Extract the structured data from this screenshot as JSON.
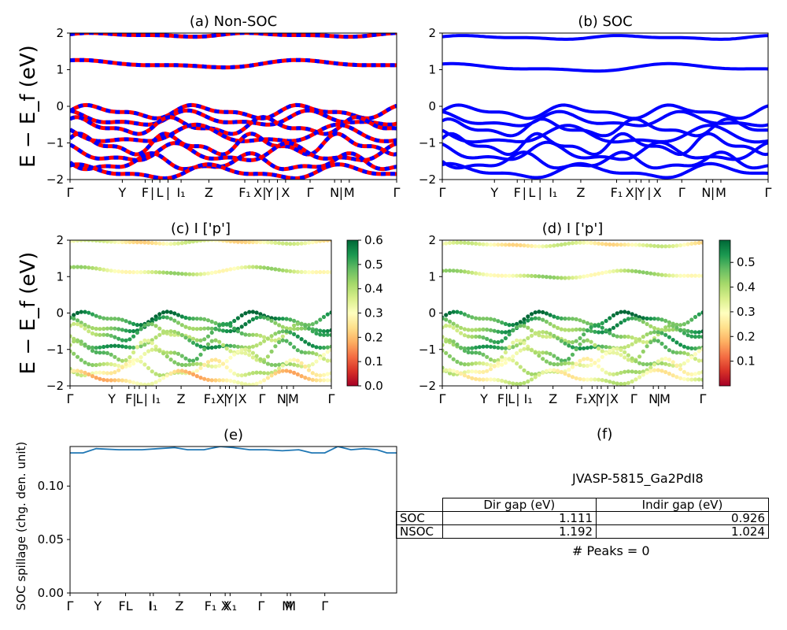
{
  "chart_data": [
    {
      "id": "a",
      "type": "line",
      "title": "(a) Non-SOC",
      "ylabel": "E − E_f (eV)",
      "ylim": [
        -2,
        2
      ],
      "yticks": [
        "2",
        "1",
        "0",
        "−1",
        "−2"
      ],
      "colors": [
        "#ff0000",
        "#0000ff"
      ],
      "xticks": [
        {
          "label": "Γ",
          "x": 0.0
        },
        {
          "label": "Y",
          "x": 0.16
        },
        {
          "label": "F",
          "x": 0.23
        },
        {
          "label": "|",
          "x": 0.252
        },
        {
          "label": "L",
          "x": 0.275
        },
        {
          "label": "|",
          "x": 0.3
        },
        {
          "label": "I₁",
          "x": 0.34
        },
        {
          "label": "Z",
          "x": 0.425
        },
        {
          "label": "F₁",
          "x": 0.535
        },
        {
          "label": "X",
          "x": 0.575
        },
        {
          "label": "|",
          "x": 0.595
        },
        {
          "label": "Y",
          "x": 0.61
        },
        {
          "label": "|",
          "x": 0.635
        },
        {
          "label": "X",
          "x": 0.66
        },
        {
          "label": "Γ",
          "x": 0.735
        },
        {
          "label": "N",
          "x": 0.81
        },
        {
          "label": "|",
          "x": 0.83
        },
        {
          "label": "M",
          "x": 0.855
        },
        {
          "label": "Γ",
          "x": 1.0
        }
      ],
      "bands": [
        {
          "base": 1.95,
          "amp": 0.04,
          "freq": 2.1,
          "phase": 0.3
        },
        {
          "base": 1.15,
          "amp": 0.08,
          "freq": 1.5,
          "phase": 1.0
        },
        {
          "base": -0.15,
          "amp": 0.14,
          "freq": 3.1,
          "phase": 0.1
        },
        {
          "base": -0.35,
          "amp": 0.16,
          "freq": 2.7,
          "phase": 1.6
        },
        {
          "base": -0.55,
          "amp": 0.18,
          "freq": 3.5,
          "phase": 0.8
        },
        {
          "base": -0.8,
          "amp": 0.2,
          "freq": 2.3,
          "phase": 2.3
        },
        {
          "base": -1.05,
          "amp": 0.22,
          "freq": 3.8,
          "phase": 0.5
        },
        {
          "base": -1.3,
          "amp": 0.2,
          "freq": 2.9,
          "phase": 1.9
        },
        {
          "base": -1.55,
          "amp": 0.18,
          "freq": 3.3,
          "phase": 2.8
        },
        {
          "base": -1.8,
          "amp": 0.15,
          "freq": 2.5,
          "phase": 0.9
        }
      ]
    },
    {
      "id": "b",
      "type": "line",
      "title": "(b) SOC",
      "ylim": [
        -2,
        2
      ],
      "yticks": [
        "2",
        "1",
        "0",
        "−1",
        "−2"
      ],
      "colors": [
        "#0000ff"
      ],
      "xticks": [
        {
          "label": "Γ",
          "x": 0.0
        },
        {
          "label": "Y",
          "x": 0.16
        },
        {
          "label": "F",
          "x": 0.23
        },
        {
          "label": "|",
          "x": 0.252
        },
        {
          "label": "L",
          "x": 0.275
        },
        {
          "label": "|",
          "x": 0.3
        },
        {
          "label": "I₁",
          "x": 0.34
        },
        {
          "label": "Z",
          "x": 0.425
        },
        {
          "label": "F₁",
          "x": 0.535
        },
        {
          "label": "X",
          "x": 0.575
        },
        {
          "label": "|",
          "x": 0.595
        },
        {
          "label": "Y",
          "x": 0.61
        },
        {
          "label": "|",
          "x": 0.635
        },
        {
          "label": "X",
          "x": 0.66
        },
        {
          "label": "Γ",
          "x": 0.735
        },
        {
          "label": "N",
          "x": 0.81
        },
        {
          "label": "|",
          "x": 0.83
        },
        {
          "label": "M",
          "x": 0.855
        },
        {
          "label": "Γ",
          "x": 1.0
        }
      ],
      "bands": [
        {
          "base": 1.88,
          "amp": 0.04,
          "freq": 2.1,
          "phase": 0.3
        },
        {
          "base": 1.05,
          "amp": 0.08,
          "freq": 1.5,
          "phase": 1.0
        },
        {
          "base": -0.15,
          "amp": 0.14,
          "freq": 3.1,
          "phase": 0.1
        },
        {
          "base": -0.38,
          "amp": 0.16,
          "freq": 2.7,
          "phase": 1.6
        },
        {
          "base": -0.6,
          "amp": 0.18,
          "freq": 3.5,
          "phase": 0.8
        },
        {
          "base": -0.82,
          "amp": 0.2,
          "freq": 2.3,
          "phase": 2.3
        },
        {
          "base": -1.05,
          "amp": 0.22,
          "freq": 3.8,
          "phase": 0.5
        },
        {
          "base": -1.28,
          "amp": 0.2,
          "freq": 2.9,
          "phase": 1.9
        },
        {
          "base": -1.52,
          "amp": 0.18,
          "freq": 3.3,
          "phase": 2.8
        },
        {
          "base": -1.78,
          "amp": 0.15,
          "freq": 2.5,
          "phase": 0.9
        }
      ]
    },
    {
      "id": "c",
      "type": "scatter",
      "title": "(c)  I ['p']",
      "ylabel": "E − E_f (eV)",
      "ylim": [
        -2,
        2
      ],
      "yticks": [
        "2",
        "1",
        "0",
        "−1",
        "−2"
      ],
      "colorbar": {
        "min": 0.0,
        "max": 0.6,
        "ticks": [
          "0.6",
          "0.5",
          "0.4",
          "0.3",
          "0.2",
          "0.1",
          "0.0"
        ]
      },
      "xticks": [
        {
          "label": "Γ",
          "x": 0.0
        },
        {
          "label": "Y",
          "x": 0.16
        },
        {
          "label": "F",
          "x": 0.225
        },
        {
          "label": "|",
          "x": 0.247
        },
        {
          "label": "L",
          "x": 0.265
        },
        {
          "label": "|",
          "x": 0.29
        },
        {
          "label": "I₁",
          "x": 0.33
        },
        {
          "label": "Z",
          "x": 0.425
        },
        {
          "label": "F₁",
          "x": 0.535
        },
        {
          "label": "X",
          "x": 0.575
        },
        {
          "label": "|",
          "x": 0.595
        },
        {
          "label": "Y",
          "x": 0.61
        },
        {
          "label": "|",
          "x": 0.635
        },
        {
          "label": "X",
          "x": 0.66
        },
        {
          "label": "Γ",
          "x": 0.735
        },
        {
          "label": "N",
          "x": 0.81
        },
        {
          "label": "|",
          "x": 0.83
        },
        {
          "label": "M",
          "x": 0.855
        },
        {
          "label": "Γ",
          "x": 1.0
        }
      ],
      "bands": [
        {
          "base": 1.95,
          "amp": 0.04,
          "freq": 2.1,
          "phase": 0.3,
          "val": 0.3
        },
        {
          "base": 1.15,
          "amp": 0.08,
          "freq": 1.5,
          "phase": 1.0,
          "val": 0.36
        },
        {
          "base": -0.15,
          "amp": 0.14,
          "freq": 3.1,
          "phase": 0.1,
          "val": 0.55
        },
        {
          "base": -0.35,
          "amp": 0.16,
          "freq": 2.7,
          "phase": 1.6,
          "val": 0.5
        },
        {
          "base": -0.55,
          "amp": 0.18,
          "freq": 3.5,
          "phase": 0.8,
          "val": 0.45
        },
        {
          "base": -0.8,
          "amp": 0.2,
          "freq": 2.3,
          "phase": 2.3,
          "val": 0.48
        },
        {
          "base": -1.05,
          "amp": 0.22,
          "freq": 3.8,
          "phase": 0.5,
          "val": 0.42
        },
        {
          "base": -1.3,
          "amp": 0.2,
          "freq": 2.9,
          "phase": 1.9,
          "val": 0.38
        },
        {
          "base": -1.55,
          "amp": 0.18,
          "freq": 3.3,
          "phase": 2.8,
          "val": 0.33
        },
        {
          "base": -1.8,
          "amp": 0.15,
          "freq": 2.5,
          "phase": 0.9,
          "val": 0.25
        }
      ]
    },
    {
      "id": "d",
      "type": "scatter",
      "title": "(d) I ['p']",
      "ylim": [
        -2,
        2
      ],
      "yticks": [
        "2",
        "1",
        "0",
        "−1",
        "−2"
      ],
      "colorbar": {
        "min": 0.0,
        "max": 0.59,
        "ticks": [
          "0.5",
          "0.4",
          "0.3",
          "0.2",
          "0.1"
        ]
      },
      "xticks": [
        {
          "label": "Γ",
          "x": 0.0
        },
        {
          "label": "Y",
          "x": 0.16
        },
        {
          "label": "F",
          "x": 0.225
        },
        {
          "label": "|",
          "x": 0.247
        },
        {
          "label": "L",
          "x": 0.265
        },
        {
          "label": "|",
          "x": 0.29
        },
        {
          "label": "I₁",
          "x": 0.33
        },
        {
          "label": "Z",
          "x": 0.425
        },
        {
          "label": "F₁",
          "x": 0.535
        },
        {
          "label": "X",
          "x": 0.575
        },
        {
          "label": "|",
          "x": 0.595
        },
        {
          "label": "Y",
          "x": 0.61
        },
        {
          "label": "|",
          "x": 0.635
        },
        {
          "label": "X",
          "x": 0.66
        },
        {
          "label": "Γ",
          "x": 0.735
        },
        {
          "label": "N",
          "x": 0.81
        },
        {
          "label": "|",
          "x": 0.83
        },
        {
          "label": "M",
          "x": 0.855
        },
        {
          "label": "Γ",
          "x": 1.0
        }
      ],
      "bands": [
        {
          "base": 1.88,
          "amp": 0.04,
          "freq": 2.1,
          "phase": 0.3,
          "val": 0.3
        },
        {
          "base": 1.05,
          "amp": 0.08,
          "freq": 1.5,
          "phase": 1.0,
          "val": 0.36
        },
        {
          "base": -0.15,
          "amp": 0.14,
          "freq": 3.1,
          "phase": 0.1,
          "val": 0.53
        },
        {
          "base": -0.38,
          "amp": 0.16,
          "freq": 2.7,
          "phase": 1.6,
          "val": 0.48
        },
        {
          "base": -0.6,
          "amp": 0.18,
          "freq": 3.5,
          "phase": 0.8,
          "val": 0.44
        },
        {
          "base": -0.82,
          "amp": 0.2,
          "freq": 2.3,
          "phase": 2.3,
          "val": 0.46
        },
        {
          "base": -1.05,
          "amp": 0.22,
          "freq": 3.8,
          "phase": 0.5,
          "val": 0.41
        },
        {
          "base": -1.28,
          "amp": 0.2,
          "freq": 2.9,
          "phase": 1.9,
          "val": 0.37
        },
        {
          "base": -1.52,
          "amp": 0.18,
          "freq": 3.3,
          "phase": 2.8,
          "val": 0.34
        },
        {
          "base": -1.78,
          "amp": 0.15,
          "freq": 2.5,
          "phase": 0.9,
          "val": 0.32
        }
      ]
    },
    {
      "id": "e",
      "type": "line",
      "title": "(e)",
      "ylabel": "SOC spillage (chg. den. unit)",
      "ylim": [
        0,
        0.137
      ],
      "yticks": [
        {
          "label": "0.10",
          "v": 0.1
        },
        {
          "label": "0.05",
          "v": 0.05
        },
        {
          "label": "0.00",
          "v": 0.0
        }
      ],
      "color": "#1f77b4",
      "xticks": [
        {
          "label": "Γ",
          "x": 0.0
        },
        {
          "label": "Y",
          "x": 0.085
        },
        {
          "label": "FL",
          "x": 0.17
        },
        {
          "label": "I",
          "x": 0.245
        },
        {
          "label": "I₁",
          "x": 0.255
        },
        {
          "label": "Z",
          "x": 0.335
        },
        {
          "label": "F₁",
          "x": 0.43
        },
        {
          "label": "X",
          "x": 0.475
        },
        {
          "label": "X₁",
          "x": 0.49
        },
        {
          "label": "Γ",
          "x": 0.585
        },
        {
          "label": "M",
          "x": 0.665
        },
        {
          "label": "M",
          "x": 0.675
        },
        {
          "label": "Γ",
          "x": 0.78
        }
      ],
      "x": [
        0.0,
        0.04,
        0.08,
        0.15,
        0.22,
        0.27,
        0.32,
        0.36,
        0.41,
        0.46,
        0.5,
        0.55,
        0.6,
        0.65,
        0.7,
        0.74,
        0.78,
        0.82,
        0.86,
        0.9,
        0.94,
        0.97,
        1.0
      ],
      "y": [
        0.131,
        0.131,
        0.135,
        0.134,
        0.134,
        0.135,
        0.136,
        0.134,
        0.134,
        0.137,
        0.136,
        0.134,
        0.134,
        0.133,
        0.134,
        0.131,
        0.131,
        0.137,
        0.134,
        0.135,
        0.134,
        0.131,
        0.131
      ]
    }
  ],
  "panel_f": {
    "title": "(f)",
    "material": "JVASP-5815_Ga2PdI8",
    "table": {
      "headers": [
        "Dir gap (eV)",
        "Indir gap (eV)"
      ],
      "rows": [
        {
          "label": "SOC",
          "dir": "1.111",
          "indir": "0.926"
        },
        {
          "label": "NSOC",
          "dir": "1.192",
          "indir": "1.024"
        }
      ]
    },
    "peaks": "# Peaks = 0"
  }
}
